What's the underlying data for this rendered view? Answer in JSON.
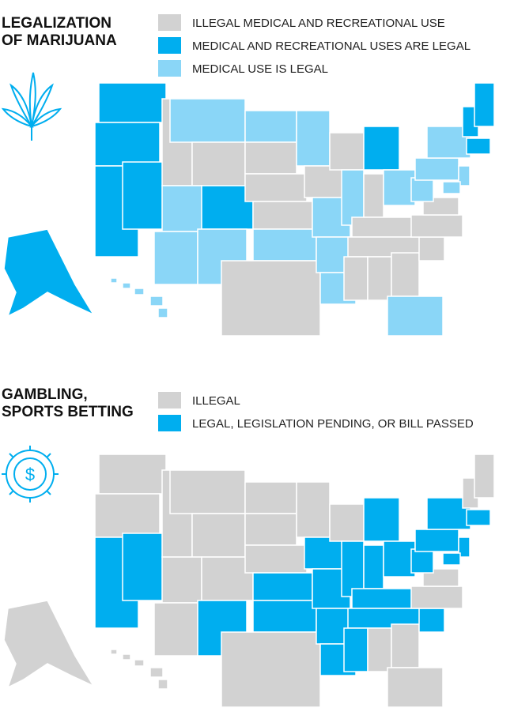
{
  "maps": [
    {
      "title": [
        "LEGALIZATION",
        "OF MARIJUANA"
      ],
      "legend": [
        {
          "label": "ILLEGAL MEDICAL AND RECREATIONAL USE",
          "color": "#d2d2d2"
        },
        {
          "label": "MEDICAL AND RECREATIONAL USES ARE LEGAL",
          "color": "#00aeef"
        },
        {
          "label": "MEDICAL USE IS LEGAL",
          "color": "#8ad6f7"
        }
      ]
    },
    {
      "title": [
        "GAMBLING,",
        "SPORTS BETTING"
      ],
      "legend": [
        {
          "label": "ILLEGAL",
          "color": "#d2d2d2"
        },
        {
          "label": "LEGAL, LEGISLATION PENDING, OR BILL PASSED",
          "color": "#00aeef"
        }
      ]
    }
  ]
}
